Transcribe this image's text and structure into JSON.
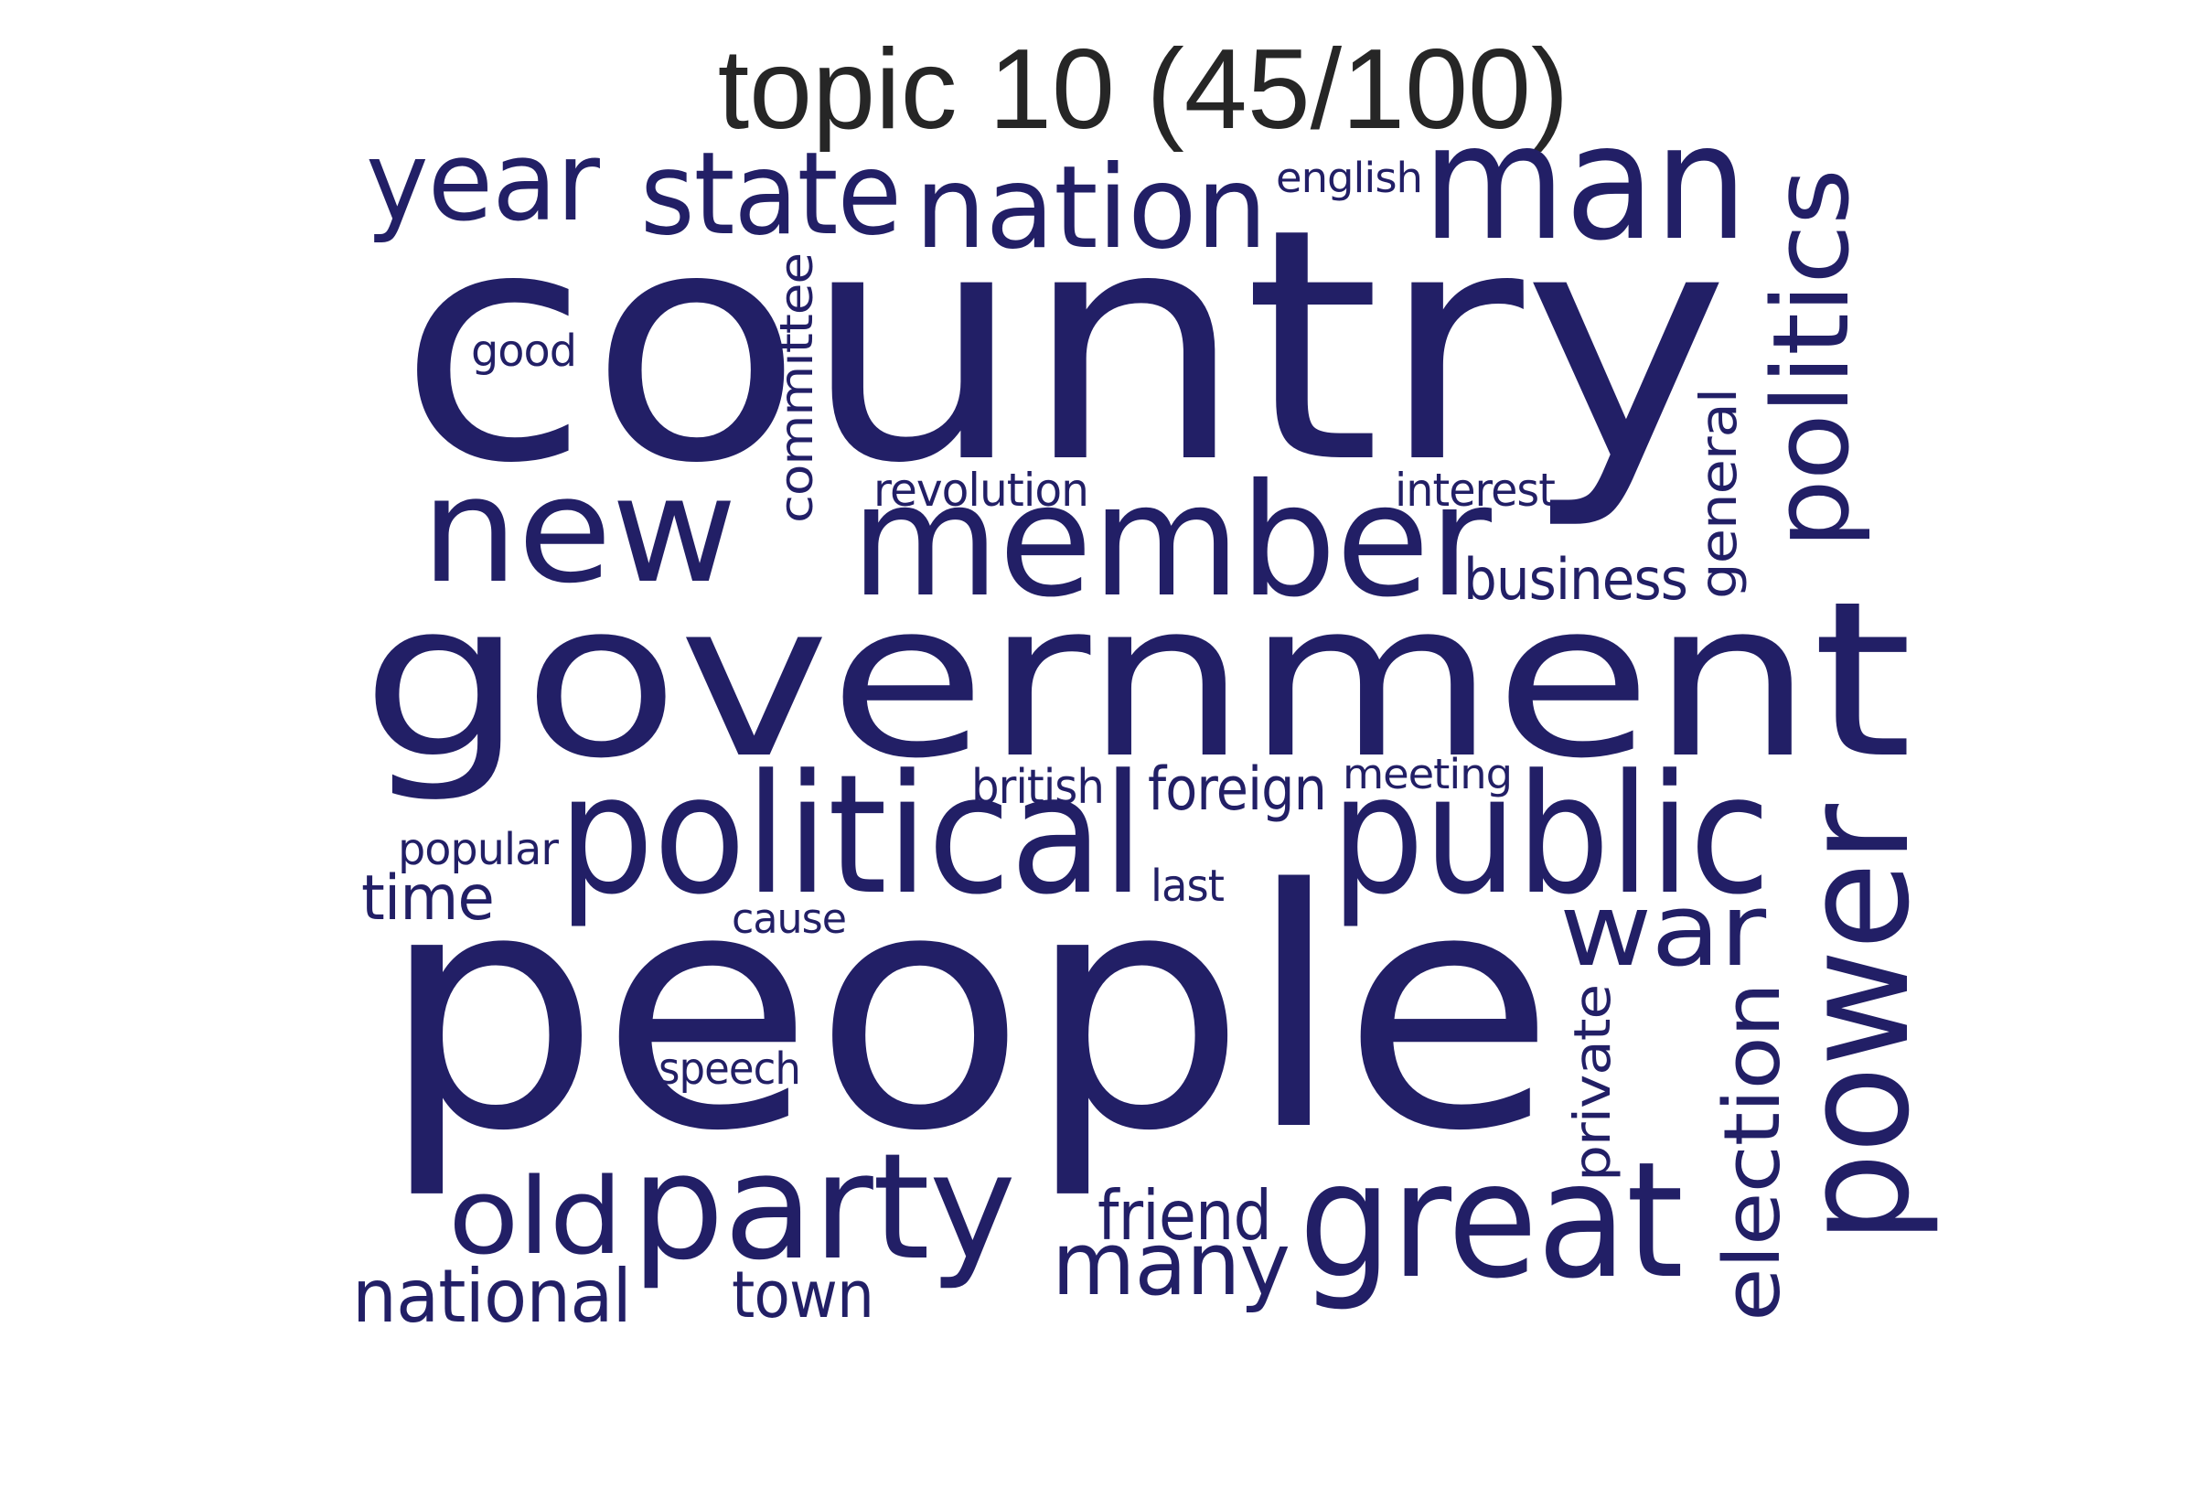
{
  "title": "topic 10 (45/100)",
  "word_color": "#221f66",
  "words": {
    "country": "country",
    "government": "government",
    "people": "people",
    "member": "member",
    "public": "public",
    "political": "political",
    "man": "man",
    "nation": "nation",
    "state": "state",
    "year": "year",
    "new": "new",
    "power": "power",
    "politics": "politics",
    "party": "party",
    "great": "great",
    "war": "war",
    "election": "election",
    "old": "old",
    "many": "many",
    "national": "national",
    "friend": "friend",
    "town": "town",
    "time": "time",
    "business": "business",
    "general": "general",
    "committee": "committee",
    "revolution": "revolution",
    "interest": "interest",
    "foreign": "foreign",
    "british": "british",
    "meeting": "meeting",
    "popular": "popular",
    "private": "private",
    "english": "english",
    "good": "good",
    "speech": "speech",
    "cause": "cause",
    "last": "last"
  }
}
